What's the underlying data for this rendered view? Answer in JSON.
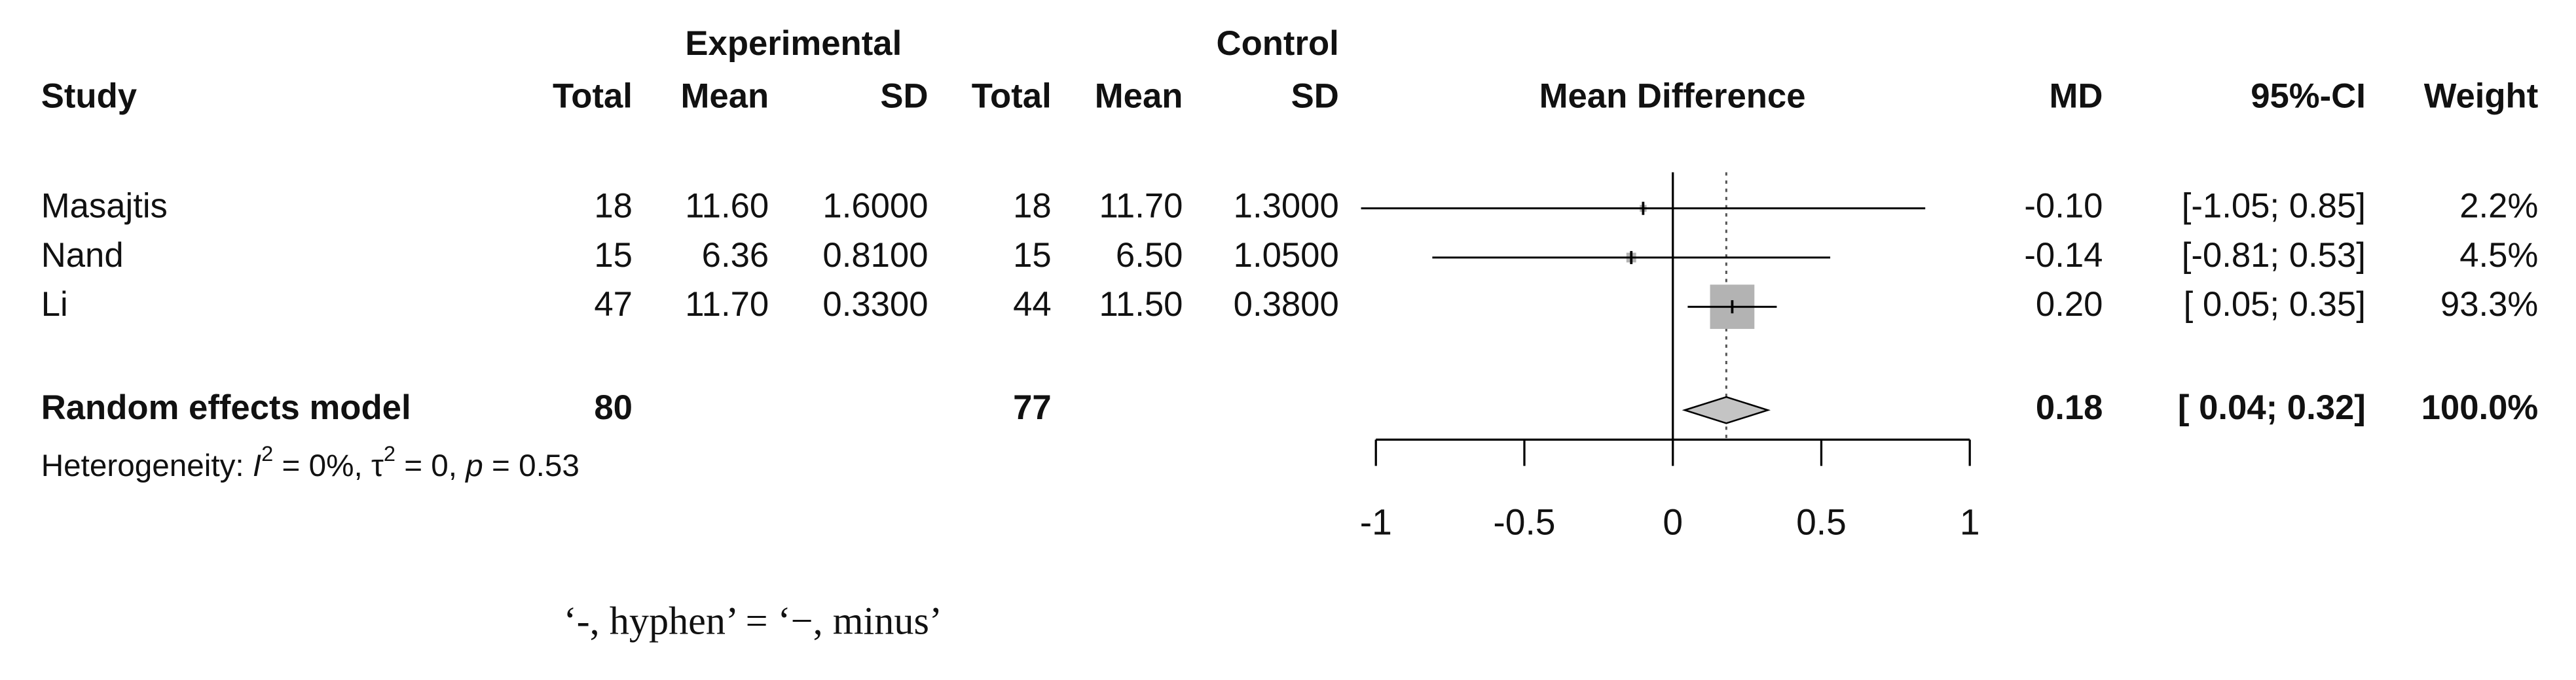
{
  "chart_data": {
    "type": "forest",
    "headers": {
      "experimental": "Experimental",
      "control": "Control",
      "study": "Study",
      "total": "Total",
      "mean": "Mean",
      "sd": "SD",
      "effect": "Mean Difference",
      "md": "MD",
      "ci": "95%-CI",
      "weight": "Weight"
    },
    "studies": [
      {
        "name": "Masajtis",
        "exp": {
          "total": "18",
          "mean": "11.60",
          "sd": "1.6000"
        },
        "ctrl": {
          "total": "18",
          "mean": "11.70",
          "sd": "1.3000"
        },
        "md": {
          "value": -0.1,
          "label": "-0.10"
        },
        "ci": {
          "lower": -1.05,
          "upper": 0.85,
          "label": "[-1.05; 0.85]"
        },
        "weight": {
          "value": 2.2,
          "label": "2.2%"
        }
      },
      {
        "name": "Nand",
        "exp": {
          "total": "15",
          "mean": "6.36",
          "sd": "0.8100"
        },
        "ctrl": {
          "total": "15",
          "mean": "6.50",
          "sd": "1.0500"
        },
        "md": {
          "value": -0.14,
          "label": "-0.14"
        },
        "ci": {
          "lower": -0.81,
          "upper": 0.53,
          "label": "[-0.81; 0.53]"
        },
        "weight": {
          "value": 4.5,
          "label": "4.5%"
        }
      },
      {
        "name": "Li",
        "exp": {
          "total": "47",
          "mean": "11.70",
          "sd": "0.3300"
        },
        "ctrl": {
          "total": "44",
          "mean": "11.50",
          "sd": "0.3800"
        },
        "md": {
          "value": 0.2,
          "label": "0.20"
        },
        "ci": {
          "lower": 0.05,
          "upper": 0.35,
          "label": "[ 0.05; 0.35]"
        },
        "weight": {
          "value": 93.3,
          "label": "93.3%"
        }
      }
    ],
    "pooled": {
      "name": "Random effects model",
      "exp_total": "80",
      "ctrl_total": "77",
      "md": {
        "value": 0.18,
        "label": "0.18"
      },
      "ci": {
        "lower": 0.04,
        "upper": 0.32,
        "label": "[ 0.04; 0.32]"
      },
      "weight": {
        "value": 100,
        "label": "100.0%"
      }
    },
    "heterogeneity": [
      {
        "text": "Heterogeneity: "
      },
      {
        "text": "I",
        "style": "italic"
      },
      {
        "text": "2",
        "style": "sup"
      },
      {
        "text": " = 0%, τ"
      },
      {
        "text": "2",
        "style": "sup"
      },
      {
        "text": " = 0, "
      },
      {
        "text": "p",
        "style": "italic"
      },
      {
        "text": " = 0.53"
      }
    ],
    "xlim": [
      -1,
      1
    ],
    "xticks": [
      -1,
      -0.5,
      0,
      0.5,
      1
    ],
    "box_color": "#b3b3b3",
    "diamond_color": "#c4c4c4"
  },
  "note": "‘-, hyphen’ = ‘−, minus’"
}
